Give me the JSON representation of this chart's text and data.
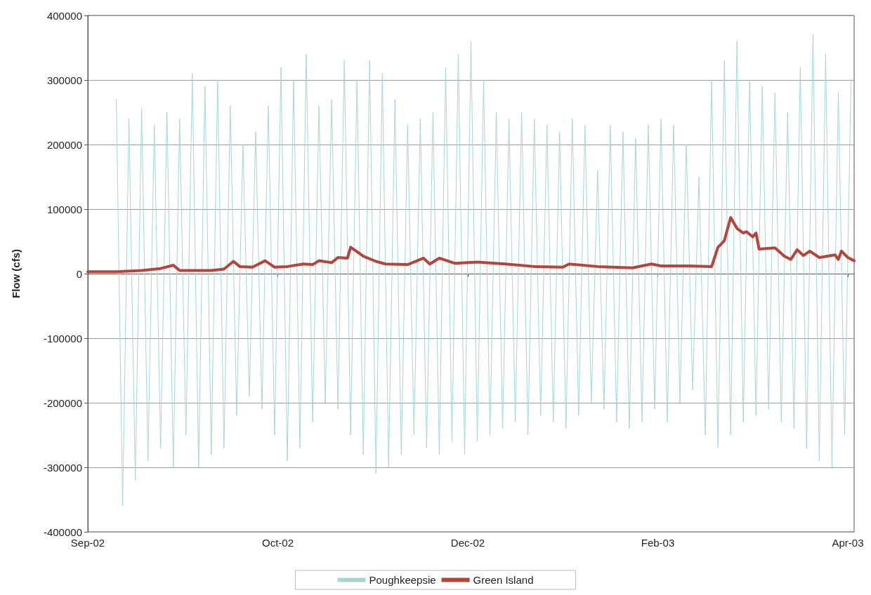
{
  "chart_data": {
    "type": "line",
    "ylabel": "Flow (cfs)",
    "xlim": [
      "2002-09-01",
      "2003-05-01"
    ],
    "xticks": [
      {
        "value": "2002-09-01",
        "label": "Sep-02"
      },
      {
        "value": "2002-10-31",
        "label": "Oct-02"
      },
      {
        "value": "2002-12-30",
        "label": "Dec-02"
      },
      {
        "value": "2003-02-28",
        "label": "Feb-03"
      },
      {
        "value": "2003-04-29",
        "label": "Apr-03"
      }
    ],
    "ylim": [
      -400000,
      400000
    ],
    "yticks": [
      -400000,
      -300000,
      -200000,
      -100000,
      0,
      100000,
      200000,
      300000,
      400000
    ],
    "grid": "y",
    "legend": "bottom",
    "marker": "none",
    "line_style": "solid",
    "series": [
      {
        "name": "Poughkeepsie",
        "color": "#a8d4d8",
        "x": [
          "2002-09-10",
          "2002-09-12",
          "2002-09-14",
          "2002-09-16",
          "2002-09-18",
          "2002-09-20",
          "2002-09-22",
          "2002-09-24",
          "2002-09-26",
          "2002-09-28",
          "2002-09-30",
          "2002-10-02",
          "2002-10-04",
          "2002-10-06",
          "2002-10-08",
          "2002-10-10",
          "2002-10-12",
          "2002-10-14",
          "2002-10-16",
          "2002-10-18",
          "2002-10-20",
          "2002-10-22",
          "2002-10-24",
          "2002-10-26",
          "2002-10-28",
          "2002-10-30",
          "2002-11-01",
          "2002-11-03",
          "2002-11-05",
          "2002-11-07",
          "2002-11-09",
          "2002-11-11",
          "2002-11-13",
          "2002-11-15",
          "2002-11-17",
          "2002-11-19",
          "2002-11-21",
          "2002-11-23",
          "2002-11-25",
          "2002-11-27",
          "2002-11-29",
          "2002-12-01",
          "2002-12-03",
          "2002-12-05",
          "2002-12-07",
          "2002-12-09",
          "2002-12-11",
          "2002-12-13",
          "2002-12-15",
          "2002-12-17",
          "2002-12-19",
          "2002-12-21",
          "2002-12-23",
          "2002-12-25",
          "2002-12-27",
          "2002-12-29",
          "2002-12-31",
          "2003-01-02",
          "2003-01-04",
          "2003-01-06",
          "2003-01-08",
          "2003-01-10",
          "2003-01-12",
          "2003-01-14",
          "2003-01-16",
          "2003-01-18",
          "2003-01-20",
          "2003-01-22",
          "2003-01-24",
          "2003-01-26",
          "2003-01-28",
          "2003-01-30",
          "2003-02-01",
          "2003-02-03",
          "2003-02-05",
          "2003-02-07",
          "2003-02-09",
          "2003-02-11",
          "2003-02-13",
          "2003-02-15",
          "2003-02-17",
          "2003-02-19",
          "2003-02-21",
          "2003-02-23",
          "2003-02-25",
          "2003-02-27",
          "2003-03-01",
          "2003-03-03",
          "2003-03-05",
          "2003-03-07",
          "2003-03-09",
          "2003-03-11",
          "2003-03-13",
          "2003-03-15",
          "2003-03-17",
          "2003-03-19",
          "2003-03-21",
          "2003-03-23",
          "2003-03-25",
          "2003-03-27",
          "2003-03-29",
          "2003-03-31",
          "2003-04-02",
          "2003-04-04",
          "2003-04-06",
          "2003-04-08",
          "2003-04-10",
          "2003-04-12",
          "2003-04-14",
          "2003-04-16",
          "2003-04-18",
          "2003-04-20",
          "2003-04-22",
          "2003-04-24",
          "2003-04-26",
          "2003-04-28",
          "2003-04-30"
        ],
        "values": [
          270000,
          -360000,
          240000,
          -320000,
          255000,
          -290000,
          230000,
          -270000,
          250000,
          -300000,
          240000,
          -250000,
          310000,
          -300000,
          290000,
          -280000,
          300000,
          -270000,
          260000,
          -220000,
          200000,
          -190000,
          220000,
          -210000,
          260000,
          -250000,
          320000,
          -290000,
          300000,
          -270000,
          340000,
          -230000,
          260000,
          -200000,
          270000,
          -210000,
          330000,
          -250000,
          300000,
          -280000,
          330000,
          -310000,
          310000,
          -300000,
          270000,
          -280000,
          230000,
          -250000,
          240000,
          -270000,
          250000,
          -280000,
          320000,
          -260000,
          340000,
          -280000,
          360000,
          -260000,
          300000,
          -250000,
          250000,
          -240000,
          240000,
          -230000,
          250000,
          -250000,
          240000,
          -220000,
          230000,
          -230000,
          220000,
          -240000,
          240000,
          -220000,
          230000,
          -200000,
          160000,
          -210000,
          230000,
          -230000,
          220000,
          -240000,
          210000,
          -230000,
          230000,
          -210000,
          240000,
          -230000,
          230000,
          -200000,
          200000,
          -180000,
          150000,
          -250000,
          300000,
          -270000,
          330000,
          -250000,
          360000,
          -230000,
          300000,
          -220000,
          290000,
          -210000,
          280000,
          -230000,
          250000,
          -240000,
          320000,
          -270000,
          370000,
          -290000,
          340000,
          -300000,
          280000,
          -250000,
          300000
        ]
      },
      {
        "name": "Green Island",
        "color": "#b5443a",
        "x": [
          "2002-09-01",
          "2002-09-10",
          "2002-09-18",
          "2002-09-24",
          "2002-09-28",
          "2002-09-30",
          "2002-10-10",
          "2002-10-14",
          "2002-10-17",
          "2002-10-19",
          "2002-10-23",
          "2002-10-27",
          "2002-10-30",
          "2002-11-03",
          "2002-11-08",
          "2002-11-11",
          "2002-11-13",
          "2002-11-17",
          "2002-11-19",
          "2002-11-22",
          "2002-11-23",
          "2002-11-27",
          "2002-12-01",
          "2002-12-04",
          "2002-12-11",
          "2002-12-16",
          "2002-12-18",
          "2002-12-21",
          "2002-12-26",
          "2003-01-02",
          "2003-01-11",
          "2003-01-20",
          "2003-01-29",
          "2003-01-31",
          "2003-02-09",
          "2003-02-20",
          "2003-02-26",
          "2003-03-01",
          "2003-03-10",
          "2003-03-17",
          "2003-03-19",
          "2003-03-21",
          "2003-03-23",
          "2003-03-25",
          "2003-03-27",
          "2003-03-28",
          "2003-03-30",
          "2003-03-31",
          "2003-04-01",
          "2003-04-06",
          "2003-04-09",
          "2003-04-11",
          "2003-04-13",
          "2003-04-15",
          "2003-04-17",
          "2003-04-20",
          "2003-04-25",
          "2003-04-26",
          "2003-04-27",
          "2003-04-29",
          "2003-05-01"
        ],
        "values": [
          3000,
          3000,
          5000,
          8000,
          13000,
          5000,
          5000,
          7000,
          19000,
          11000,
          10000,
          20000,
          10000,
          11000,
          15000,
          14000,
          20000,
          17000,
          25000,
          24000,
          41000,
          27000,
          19000,
          15000,
          14000,
          24000,
          15000,
          24000,
          16000,
          18000,
          15000,
          11000,
          10000,
          15000,
          11000,
          9000,
          15000,
          12000,
          12000,
          11000,
          41000,
          51000,
          87000,
          70000,
          63000,
          65000,
          57000,
          63000,
          38000,
          40000,
          27000,
          22000,
          37000,
          28000,
          35000,
          25000,
          29000,
          22000,
          35000,
          25000,
          20000
        ]
      }
    ]
  }
}
